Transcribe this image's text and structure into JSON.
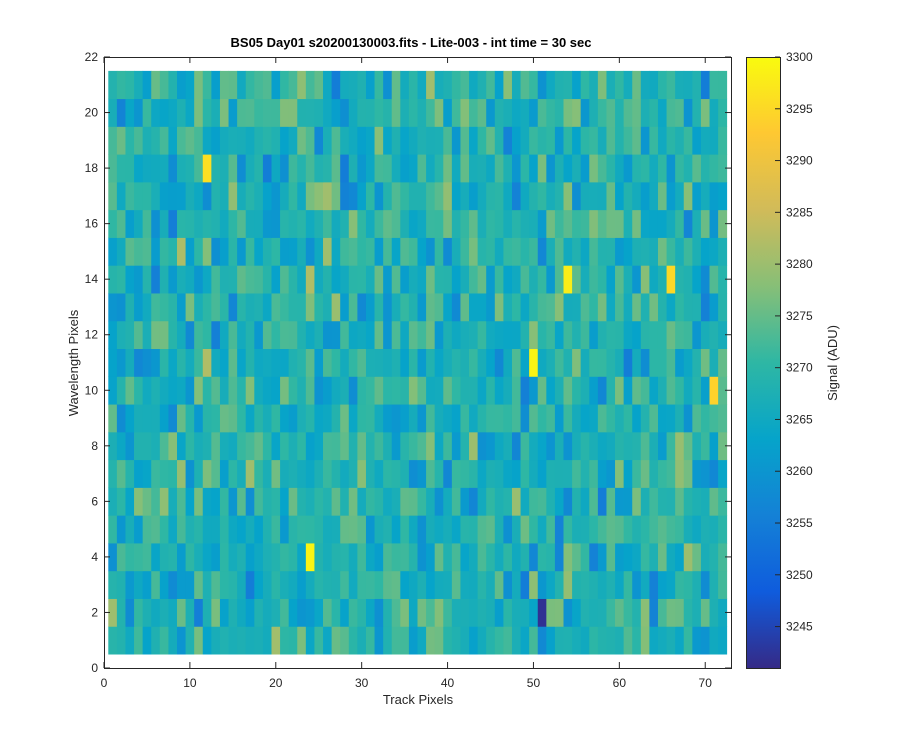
{
  "chart_data": {
    "type": "heatmap",
    "title": "BS05 Day01  s20200130003.fits - Lite-003 - int time = 30 sec",
    "xlabel": "Track Pixels",
    "ylabel": "Wavelength Pixels",
    "xlim": [
      0,
      73
    ],
    "ylim": [
      0,
      22
    ],
    "x_ticks": [
      0,
      10,
      20,
      30,
      40,
      50,
      60,
      70
    ],
    "y_ticks": [
      0,
      2,
      4,
      6,
      8,
      10,
      12,
      14,
      16,
      18,
      20,
      22
    ],
    "x_range": [
      1,
      72
    ],
    "y_range": [
      1,
      21
    ],
    "grid": false,
    "colorbar": {
      "label": "Signal (ADU)",
      "range": [
        3241,
        3300
      ],
      "ticks": [
        3245,
        3250,
        3255,
        3260,
        3265,
        3270,
        3275,
        3280,
        3285,
        3290,
        3295,
        3300
      ],
      "colormap": "parula"
    },
    "value_stats": {
      "mean": 3268,
      "typical_min": 3255,
      "typical_max": 3290
    },
    "notable_cells": [
      {
        "x": 51,
        "y": 2,
        "value": 3242
      },
      {
        "x": 24,
        "y": 4,
        "value": 3299
      },
      {
        "x": 50,
        "y": 11,
        "value": 3299
      },
      {
        "x": 54,
        "y": 14,
        "value": 3298
      },
      {
        "x": 66,
        "y": 14,
        "value": 3295
      },
      {
        "x": 12,
        "y": 18,
        "value": 3296
      },
      {
        "x": 71,
        "y": 10,
        "value": 3294
      }
    ]
  }
}
